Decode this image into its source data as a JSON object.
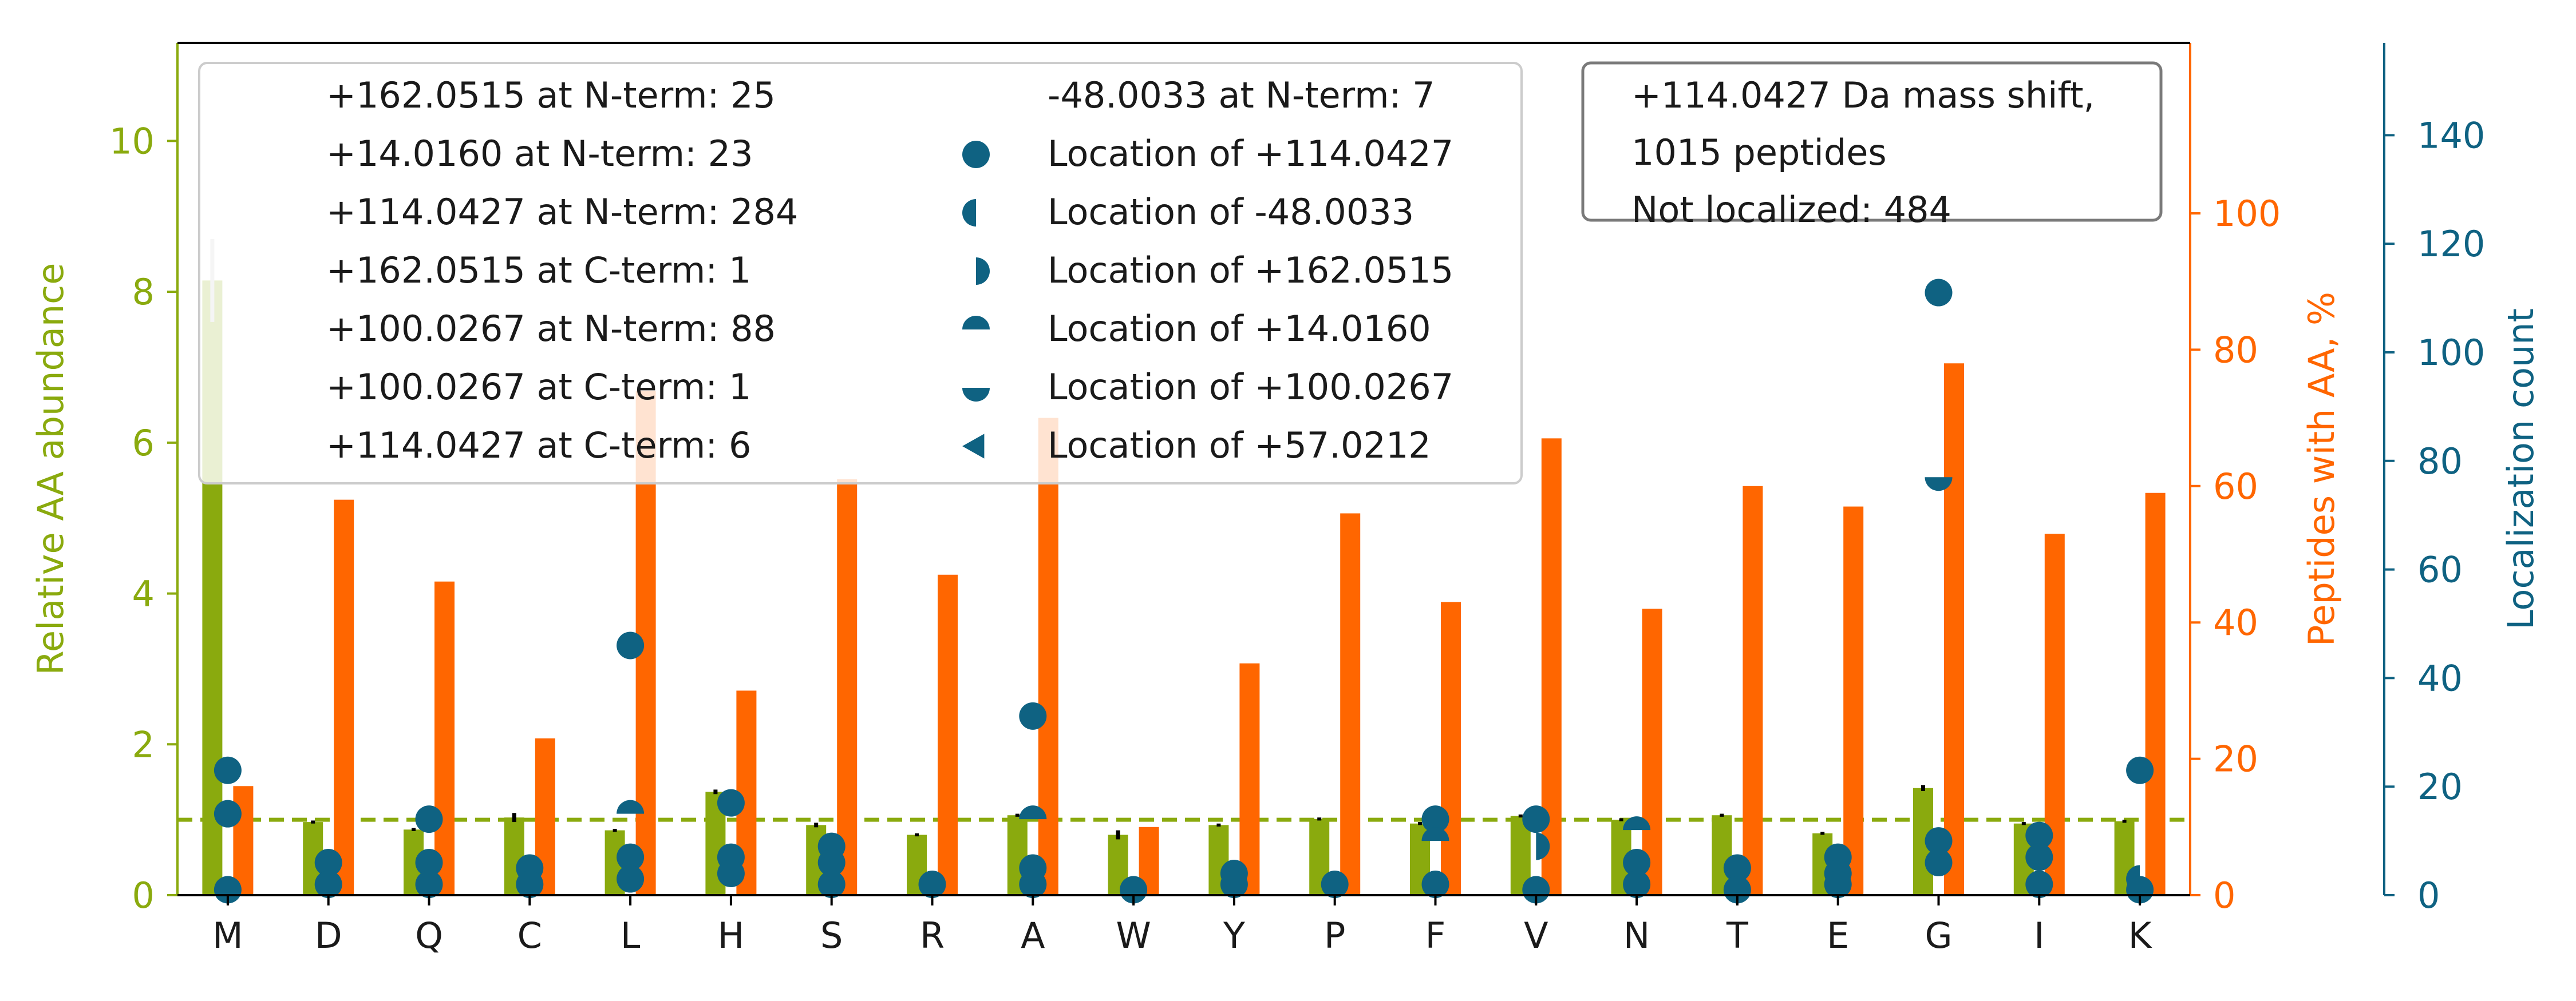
{
  "chart_data": {
    "type": "bar",
    "categories": [
      "M",
      "D",
      "Q",
      "C",
      "L",
      "H",
      "S",
      "R",
      "A",
      "W",
      "Y",
      "P",
      "F",
      "V",
      "N",
      "T",
      "E",
      "G",
      "I",
      "K"
    ],
    "axes": {
      "left": {
        "label": "Relative AA abundance",
        "lim": [
          0,
          11.3
        ],
        "ticks": [
          0,
          2,
          4,
          6,
          8,
          10
        ],
        "color": "#8aaa0e"
      },
      "right1": {
        "label": "Peptides with AA, %",
        "lim": [
          0,
          125
        ],
        "ticks": [
          0,
          20,
          40,
          60,
          80,
          100
        ],
        "color": "#ff6600"
      },
      "right2": {
        "label": "Localization count",
        "lim": [
          0,
          157
        ],
        "ticks": [
          0,
          20,
          40,
          60,
          80,
          100,
          120,
          140
        ],
        "color": "#0f6282"
      }
    },
    "reference_line": {
      "axis": "left",
      "y": 1.0,
      "style": "dashed",
      "color": "#8aaa0e"
    },
    "series": [
      {
        "name": "Relative AA abundance",
        "axis": "left",
        "color": "#8aaa0e",
        "values": [
          8.15,
          0.97,
          0.87,
          1.03,
          0.86,
          1.37,
          0.93,
          0.8,
          1.06,
          0.8,
          0.93,
          1.01,
          0.95,
          1.05,
          1.0,
          1.06,
          0.82,
          1.42,
          0.95,
          0.98
        ],
        "errors": [
          0.55,
          0.02,
          0.02,
          0.06,
          0.02,
          0.03,
          0.03,
          0.02,
          0.02,
          0.06,
          0.02,
          0.02,
          0.02,
          0.02,
          0.02,
          0.02,
          0.02,
          0.04,
          0.02,
          0.02
        ]
      },
      {
        "name": "Peptides with AA, %",
        "axis": "right1",
        "color": "#ff6600",
        "values": [
          16,
          58,
          46,
          23,
          74,
          30,
          61,
          47,
          70,
          10,
          34,
          56,
          43,
          67,
          42,
          60,
          57,
          78,
          53,
          59
        ]
      }
    ],
    "localizations": {
      "axis": "right2",
      "color": "#0f6282",
      "points": [
        {
          "x": "M",
          "y": 23,
          "marker": "full"
        },
        {
          "x": "M",
          "y": 15,
          "marker": "full"
        },
        {
          "x": "M",
          "y": 1,
          "marker": "full"
        },
        {
          "x": "D",
          "y": 6,
          "marker": "full"
        },
        {
          "x": "D",
          "y": 2,
          "marker": "full"
        },
        {
          "x": "Q",
          "y": 14,
          "marker": "full"
        },
        {
          "x": "Q",
          "y": 6,
          "marker": "full"
        },
        {
          "x": "Q",
          "y": 2,
          "marker": "full"
        },
        {
          "x": "C",
          "y": 5,
          "marker": "full"
        },
        {
          "x": "C",
          "y": 2,
          "marker": "full"
        },
        {
          "x": "L",
          "y": 46,
          "marker": "full"
        },
        {
          "x": "L",
          "y": 15,
          "marker": "top"
        },
        {
          "x": "L",
          "y": 7,
          "marker": "full"
        },
        {
          "x": "L",
          "y": 3,
          "marker": "full"
        },
        {
          "x": "H",
          "y": 17,
          "marker": "full"
        },
        {
          "x": "H",
          "y": 7,
          "marker": "full"
        },
        {
          "x": "H",
          "y": 4,
          "marker": "full"
        },
        {
          "x": "S",
          "y": 9,
          "marker": "full"
        },
        {
          "x": "S",
          "y": 6,
          "marker": "full"
        },
        {
          "x": "S",
          "y": 2,
          "marker": "full"
        },
        {
          "x": "R",
          "y": 2,
          "marker": "full"
        },
        {
          "x": "A",
          "y": 33,
          "marker": "full"
        },
        {
          "x": "A",
          "y": 14,
          "marker": "top"
        },
        {
          "x": "A",
          "y": 5,
          "marker": "full"
        },
        {
          "x": "A",
          "y": 2,
          "marker": "full"
        },
        {
          "x": "W",
          "y": 1,
          "marker": "full"
        },
        {
          "x": "Y",
          "y": 4,
          "marker": "full"
        },
        {
          "x": "Y",
          "y": 2,
          "marker": "full"
        },
        {
          "x": "P",
          "y": 2,
          "marker": "full"
        },
        {
          "x": "F",
          "y": 14,
          "marker": "full"
        },
        {
          "x": "F",
          "y": 10,
          "marker": "top"
        },
        {
          "x": "F",
          "y": 2,
          "marker": "full"
        },
        {
          "x": "V",
          "y": 14,
          "marker": "full"
        },
        {
          "x": "V",
          "y": 9,
          "marker": "right"
        },
        {
          "x": "V",
          "y": 1,
          "marker": "full"
        },
        {
          "x": "N",
          "y": 12,
          "marker": "top"
        },
        {
          "x": "N",
          "y": 6,
          "marker": "full"
        },
        {
          "x": "N",
          "y": 2,
          "marker": "full"
        },
        {
          "x": "T",
          "y": 5,
          "marker": "full"
        },
        {
          "x": "T",
          "y": 1,
          "marker": "full"
        },
        {
          "x": "E",
          "y": 7,
          "marker": "full"
        },
        {
          "x": "E",
          "y": 4,
          "marker": "full"
        },
        {
          "x": "E",
          "y": 2,
          "marker": "full"
        },
        {
          "x": "G",
          "y": 111,
          "marker": "full"
        },
        {
          "x": "G",
          "y": 77,
          "marker": "bottom"
        },
        {
          "x": "G",
          "y": 10,
          "marker": "full"
        },
        {
          "x": "G",
          "y": 6,
          "marker": "full"
        },
        {
          "x": "I",
          "y": 11,
          "marker": "full"
        },
        {
          "x": "I",
          "y": 7,
          "marker": "full"
        },
        {
          "x": "I",
          "y": 2,
          "marker": "full"
        },
        {
          "x": "K",
          "y": 23,
          "marker": "full"
        },
        {
          "x": "K",
          "y": 3,
          "marker": "left"
        },
        {
          "x": "K",
          "y": 1,
          "marker": "full"
        }
      ]
    },
    "legend": {
      "placement": "upper-left",
      "left_column": [
        "+162.0515 at N-term: 25",
        "+14.0160 at N-term: 23",
        "+114.0427 at N-term: 284",
        "+162.0515 at C-term: 1",
        "+100.0267 at N-term: 88",
        "+100.0267 at C-term: 1",
        "+114.0427 at C-term: 6"
      ],
      "right_column": [
        {
          "label": "-48.0033 at N-term: 7",
          "marker": "none"
        },
        {
          "label": "Location of +114.0427",
          "marker": "full"
        },
        {
          "label": "Location of -48.0033",
          "marker": "left"
        },
        {
          "label": "Location of +162.0515",
          "marker": "right"
        },
        {
          "label": "Location of +14.0160",
          "marker": "top"
        },
        {
          "label": "Location of +100.0267",
          "marker": "bottom"
        },
        {
          "label": "Location of +57.0212",
          "marker": "triangle-left"
        }
      ]
    },
    "info_box": {
      "placement": "upper-right",
      "lines": [
        "+114.0427 Da mass shift,",
        "1015 peptides",
        "Not localized: 484"
      ]
    }
  }
}
